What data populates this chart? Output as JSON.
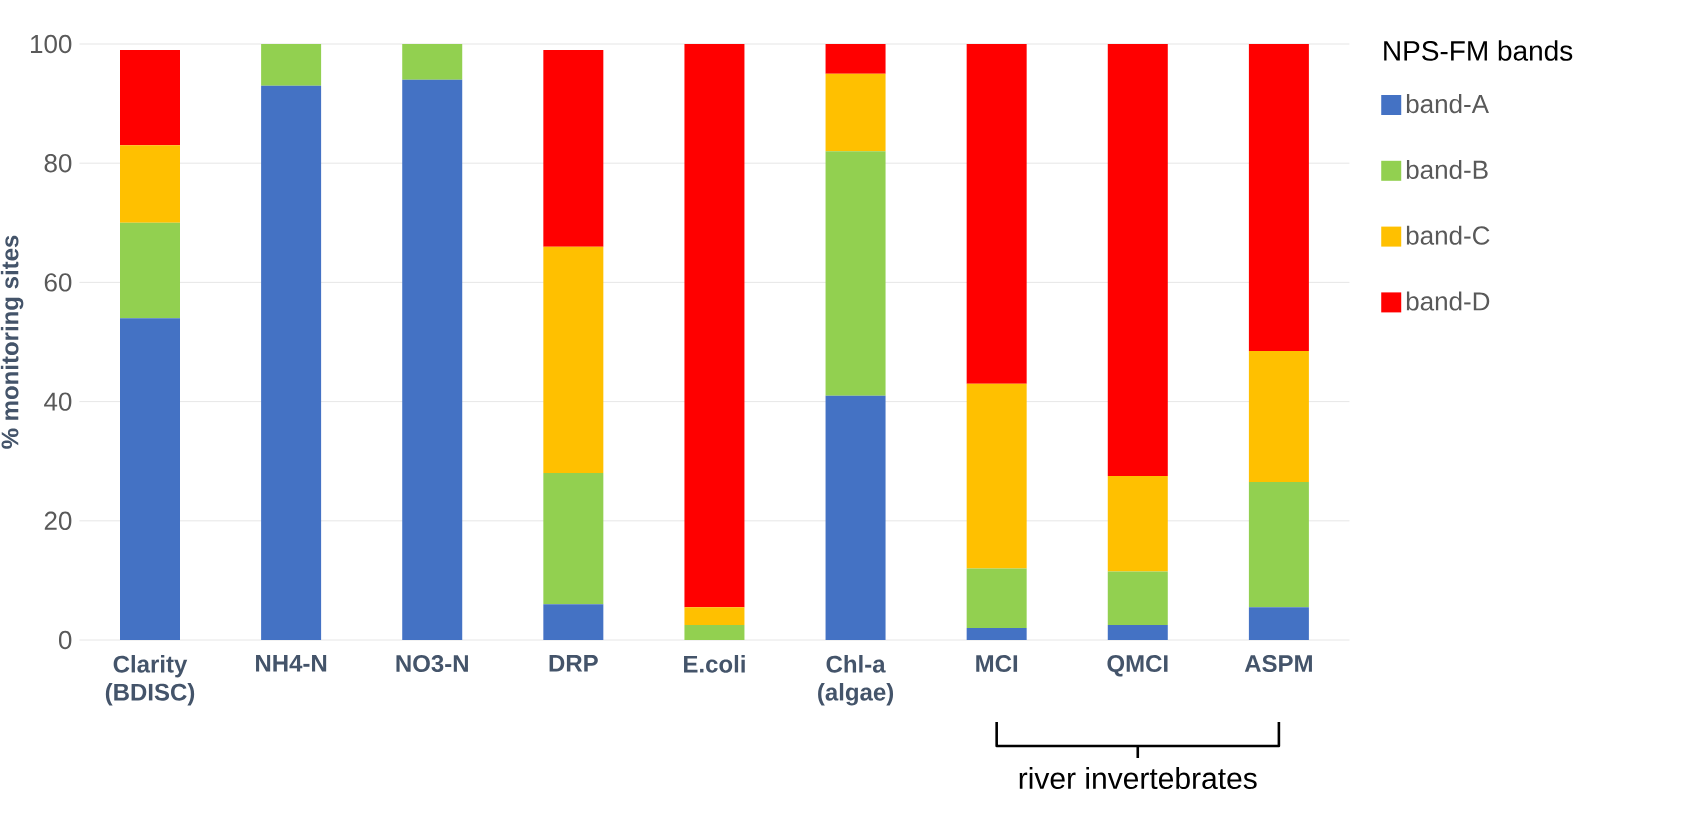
{
  "chart_data": {
    "type": "bar",
    "stacked": true,
    "ylabel": "% monitoring  sites",
    "legend_title": "NPS-FM bands",
    "legend": "right",
    "categories": [
      "Clarity (BDISC)",
      "NH4-N",
      "NO3-N",
      "DRP",
      "E.coli",
      "Chl-a (algae)",
      "MCI",
      "QMCI",
      "ASPM"
    ],
    "series": [
      {
        "name": "band-A",
        "color": "#4472c4",
        "values": [
          54,
          93,
          94,
          6,
          0,
          41,
          2,
          2.5,
          5.5
        ]
      },
      {
        "name": "band-B",
        "color": "#92d050",
        "values": [
          16,
          7,
          6,
          22,
          2.5,
          41,
          10,
          9,
          21
        ]
      },
      {
        "name": "band-C",
        "color": "#ffc000",
        "values": [
          13,
          0,
          0,
          38,
          3,
          13,
          31,
          16,
          22
        ]
      },
      {
        "name": "band-D",
        "color": "#ff0000",
        "values": [
          16,
          0,
          0,
          33,
          94.5,
          5,
          57,
          72.5,
          51.5
        ]
      }
    ],
    "ylim": [
      0,
      100
    ],
    "yticks": [
      0,
      20,
      40,
      60,
      80,
      100
    ],
    "grid": "y",
    "annotations": [
      "river invertebrates"
    ]
  }
}
